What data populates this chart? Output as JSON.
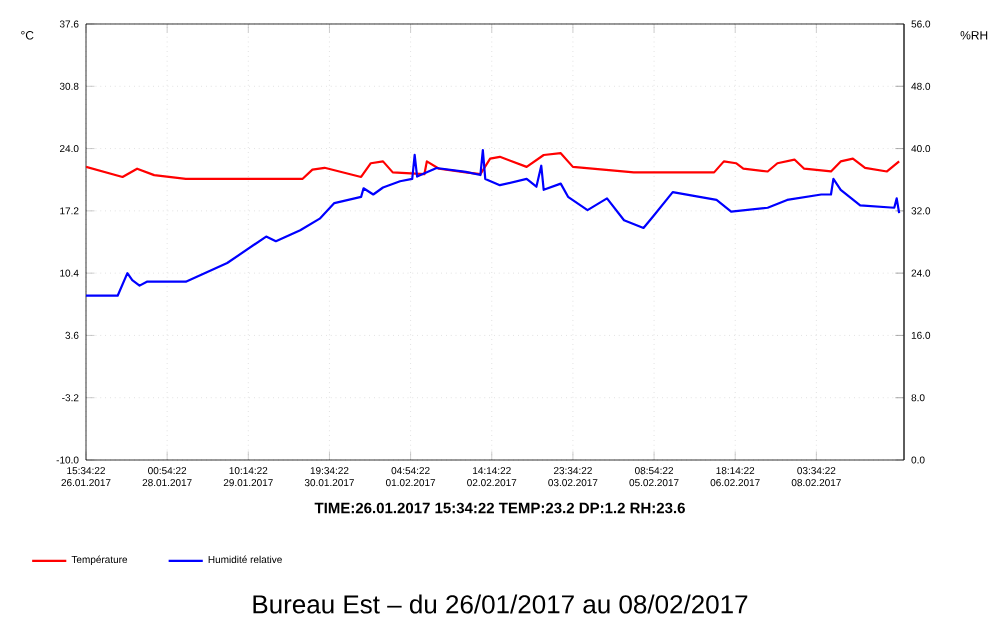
{
  "chart_data": {
    "type": "line",
    "xlim": [
      "2017-01-26T15:34",
      "2017-02-09T15:34"
    ],
    "xticks": [
      {
        "value": "2017-01-26T15:34",
        "label": "15:34:22 26.01.2017"
      },
      {
        "value": "2017-01-28T00:54",
        "label": "00:54:22 28.01.2017"
      },
      {
        "value": "2017-01-29T10:14",
        "label": "10:14:22 29.01.2017"
      },
      {
        "value": "2017-01-30T19:34",
        "label": "19:34:22 30.01.2017"
      },
      {
        "value": "2017-02-01T04:54",
        "label": "04:54:22 01.02.2017"
      },
      {
        "value": "2017-02-02T14:14",
        "label": "14:14:22 02.02.2017"
      },
      {
        "value": "2017-02-03T23:34",
        "label": "23:34:22 03.02.2017"
      },
      {
        "value": "2017-02-05T08:54",
        "label": "08:54:22 05.02.2017"
      },
      {
        "value": "2017-02-06T18:14",
        "label": "18:14:22 06.02.2017"
      },
      {
        "value": "2017-02-08T03:34",
        "label": "03:34:22 08.02.2017"
      }
    ],
    "ylim": [
      -10.0,
      37.6
    ],
    "yticks": [
      {
        "value": -10.0,
        "label": "-10.0"
      },
      {
        "value": -3.2,
        "label": "-3.2"
      },
      {
        "value": 3.6,
        "label": "3.6"
      },
      {
        "value": 10.4,
        "label": "10.4"
      },
      {
        "value": 17.2,
        "label": "17.2"
      },
      {
        "value": 24.0,
        "label": "24.0"
      },
      {
        "value": 30.8,
        "label": "30.8"
      },
      {
        "value": 37.6,
        "label": "37.6"
      }
    ],
    "y2lim": [
      0.0,
      56.0
    ],
    "y2ticks": [
      {
        "value": 0,
        "label": "0.0"
      },
      {
        "value": 8,
        "label": "8.0"
      },
      {
        "value": 16,
        "label": "16.0"
      },
      {
        "value": 24,
        "label": "24.0"
      },
      {
        "value": 32,
        "label": "32.0"
      },
      {
        "value": 40,
        "label": "40.0"
      },
      {
        "value": 48,
        "label": "48.0"
      },
      {
        "value": 56,
        "label": "56.0"
      }
    ],
    "ylabel": "°C",
    "y2label": "%RH",
    "grid": true,
    "legend": "bottom left",
    "marker": "none",
    "line_style": "solid",
    "annotations": [
      "TIME:26.01.2017 15:34:22 TEMP:23.2 DP:1.2 RH:23.6",
      "Bureau Est – du 26/01/2017 au 08/02/2017"
    ],
    "series": [
      {
        "name": "Température",
        "color": "#ff0000",
        "x": [
          "2017-01-26T15:34",
          "2017-01-27T06:34",
          "2017-01-27T12:34",
          "2017-01-27T19:34",
          "2017-01-28T08:34",
          "2017-01-29T17:34",
          "2017-01-30T08:34",
          "2017-01-30T12:34",
          "2017-01-30T17:34",
          "2017-01-31T08:34",
          "2017-01-31T12:34",
          "2017-01-31T17:34",
          "2017-01-31T21:34",
          "2017-02-01T10:34",
          "2017-02-01T11:34",
          "2017-02-01T16:34",
          "2017-02-02T03:34",
          "2017-02-02T09:34",
          "2017-02-02T13:34",
          "2017-02-02T17:34",
          "2017-02-03T04:34",
          "2017-02-03T11:34",
          "2017-02-03T18:34",
          "2017-02-03T23:34",
          "2017-02-05T00:34",
          "2017-02-06T09:34",
          "2017-02-06T13:34",
          "2017-02-06T18:34",
          "2017-02-06T21:34",
          "2017-02-07T07:34",
          "2017-02-07T11:34",
          "2017-02-07T18:34",
          "2017-02-07T22:34",
          "2017-02-08T09:34",
          "2017-02-08T13:34",
          "2017-02-08T18:34",
          "2017-02-08T23:34",
          "2017-02-09T08:34",
          "2017-02-09T13:34"
        ],
        "values": [
          22.0,
          20.9,
          21.8,
          21.1,
          20.7,
          20.7,
          20.7,
          21.7,
          21.9,
          20.9,
          22.4,
          22.6,
          21.4,
          21.2,
          22.6,
          21.8,
          21.4,
          21.2,
          22.9,
          23.1,
          22.0,
          23.3,
          23.5,
          22.0,
          21.4,
          21.4,
          22.6,
          22.4,
          21.8,
          21.5,
          22.4,
          22.8,
          21.8,
          21.5,
          22.6,
          22.9,
          21.9,
          21.5,
          22.6
        ]
      },
      {
        "name": "Humidité relative",
        "color": "#0000ff",
        "axis": "y2",
        "x": [
          "2017-01-26T15:34",
          "2017-01-27T04:34",
          "2017-01-27T08:34",
          "2017-01-27T10:34",
          "2017-01-27T13:34",
          "2017-01-27T16:34",
          "2017-01-28T08:34",
          "2017-01-29T01:34",
          "2017-01-29T17:34",
          "2017-01-29T21:34",
          "2017-01-30T07:34",
          "2017-01-30T15:34",
          "2017-01-30T21:34",
          "2017-01-31T08:34",
          "2017-01-31T09:34",
          "2017-01-31T13:34",
          "2017-01-31T17:34",
          "2017-02-01T00:34",
          "2017-02-01T05:34",
          "2017-02-01T06:34",
          "2017-02-01T07:34",
          "2017-02-01T15:34",
          "2017-02-02T03:34",
          "2017-02-02T09:34",
          "2017-02-02T10:34",
          "2017-02-02T11:34",
          "2017-02-02T17:34",
          "2017-02-03T04:34",
          "2017-02-03T08:34",
          "2017-02-03T10:34",
          "2017-02-03T11:34",
          "2017-02-03T18:34",
          "2017-02-03T21:34",
          "2017-02-04T05:34",
          "2017-02-04T13:34",
          "2017-02-04T20:34",
          "2017-02-05T04:34",
          "2017-02-05T08:34",
          "2017-02-05T16:34",
          "2017-02-06T03:34",
          "2017-02-06T10:34",
          "2017-02-06T16:34",
          "2017-02-07T07:34",
          "2017-02-07T15:34",
          "2017-02-08T05:34",
          "2017-02-08T09:34",
          "2017-02-08T10:34",
          "2017-02-08T13:34",
          "2017-02-08T21:34",
          "2017-02-09T11:34",
          "2017-02-09T12:34",
          "2017-02-09T13:34"
        ],
        "values": [
          21.1,
          21.1,
          24.0,
          23.1,
          22.4,
          22.9,
          22.9,
          25.3,
          28.7,
          28.1,
          29.5,
          31.0,
          33.0,
          33.8,
          34.9,
          34.1,
          35.0,
          35.8,
          36.1,
          39.2,
          36.4,
          37.5,
          37.0,
          36.6,
          39.8,
          36.1,
          35.3,
          36.1,
          35.1,
          37.8,
          34.7,
          35.5,
          33.8,
          32.1,
          33.6,
          30.8,
          29.8,
          31.3,
          34.4,
          33.8,
          33.4,
          31.9,
          32.4,
          33.4,
          34.1,
          34.1,
          36.1,
          34.7,
          32.7,
          32.4,
          33.6,
          31.7
        ]
      }
    ]
  }
}
